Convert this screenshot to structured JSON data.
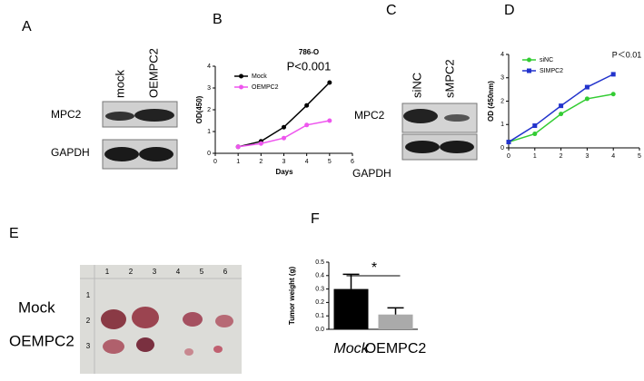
{
  "panel_letters": [
    "A",
    "B",
    "C",
    "D",
    "E",
    "F"
  ],
  "blot_a": {
    "lanes": [
      "mock",
      "OEMPC2"
    ],
    "rows": [
      "MPC2",
      "GAPDH"
    ]
  },
  "blot_c": {
    "lanes": [
      "siNC",
      "sMPC2"
    ],
    "rows": [
      "MPC2",
      "GAPDH"
    ]
  },
  "photo": {
    "rows": [
      "Mock",
      "OEMPC2"
    ],
    "ruler_top": [
      "1",
      "2",
      "3",
      "4",
      "5",
      "6"
    ],
    "ruler_left": [
      "1",
      "2",
      "3"
    ]
  },
  "chart_data": [
    {
      "type": "line",
      "title": "786-O",
      "annotation": "P<0.001",
      "x_label": "Days",
      "y_label": "OD(450)",
      "x": [
        1,
        2,
        3,
        4,
        5
      ],
      "xlim": [
        0,
        6
      ],
      "xticks": [
        0,
        1,
        2,
        3,
        4,
        5,
        6
      ],
      "ylim": [
        0,
        4
      ],
      "yticks": [
        0,
        1,
        2,
        3,
        4
      ],
      "series": [
        {
          "name": "Mock",
          "color": "#000000",
          "values": [
            0.3,
            0.55,
            1.2,
            2.2,
            3.25
          ]
        },
        {
          "name": "OEMPC2",
          "color": "#ee55ee",
          "values": [
            0.3,
            0.45,
            0.7,
            1.3,
            1.5
          ]
        }
      ]
    },
    {
      "type": "line",
      "annotation": "P＜0.01",
      "y_label": "OD (450nm)",
      "x": [
        0,
        1,
        2,
        3,
        4
      ],
      "xlim": [
        0,
        5
      ],
      "xticks": [
        0,
        1,
        2,
        3,
        4,
        5
      ],
      "ylim": [
        0,
        4
      ],
      "yticks": [
        0,
        1,
        2,
        3,
        4
      ],
      "series": [
        {
          "name": "siNC",
          "color": "#33cc33",
          "values": [
            0.25,
            0.6,
            1.45,
            2.1,
            2.3
          ]
        },
        {
          "name": "SIMPC2",
          "color": "#2233cc",
          "values": [
            0.25,
            0.95,
            1.8,
            2.6,
            3.15
          ]
        }
      ]
    },
    {
      "type": "bar",
      "annotation": "*",
      "y_label": "Tumor weight (g)",
      "categories": [
        "Mock",
        "OEMPC2"
      ],
      "values": [
        0.3,
        0.11
      ],
      "errors": [
        0.11,
        0.05
      ],
      "colors": [
        "#000000",
        "#aaaaaa"
      ],
      "ylim": [
        0,
        0.5
      ],
      "yticks": [
        {
          "value": 0,
          "label": "0.0"
        },
        0.1,
        0.2,
        0.3,
        0.4,
        0.5
      ]
    }
  ]
}
